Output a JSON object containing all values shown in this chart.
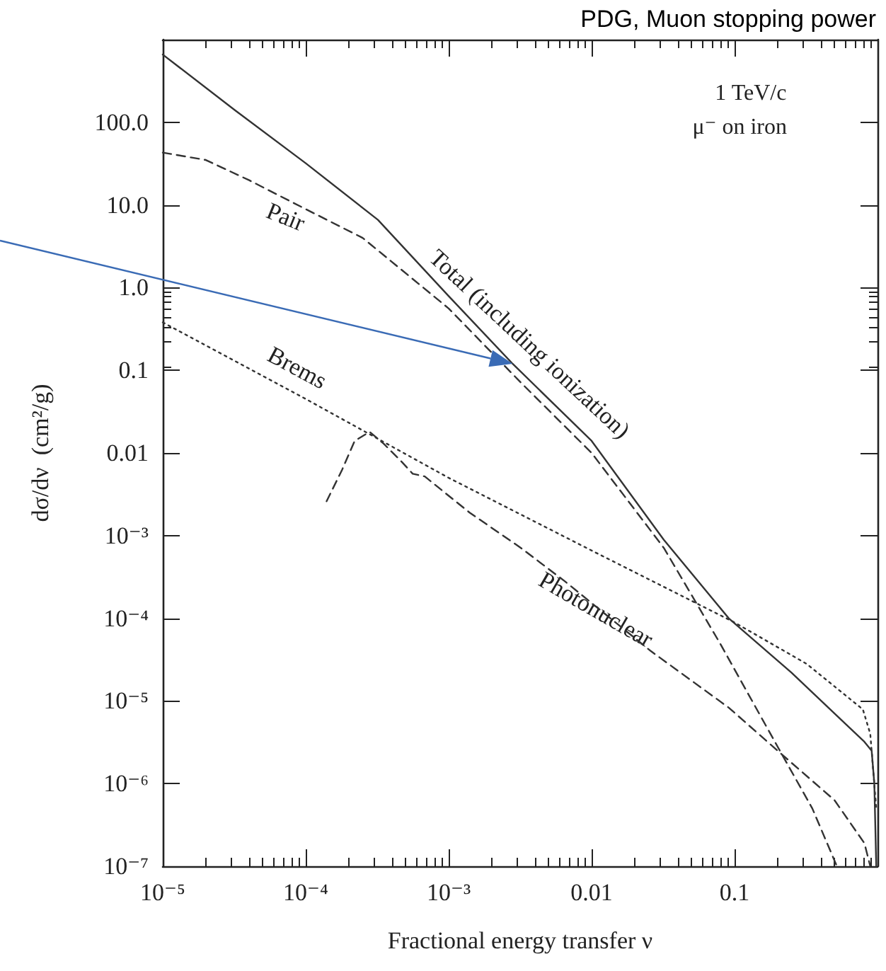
{
  "chart_data": {
    "type": "line",
    "title": "PDG, Muon stopping power",
    "xlabel": "Fractional energy transfer ν",
    "ylabel": "dσ/dν  (cm²/g)",
    "annotations": [
      "1 TeV/c",
      "μ⁻ on iron"
    ],
    "xlim": [
      1e-05,
      1
    ],
    "ylim": [
      1e-07,
      1000
    ],
    "log": "xy",
    "grid": false,
    "legend": false,
    "marker": "none",
    "xticks": [
      {
        "value": 1e-05,
        "label": "10⁻⁵"
      },
      {
        "value": 0.0001,
        "label": "10⁻⁴"
      },
      {
        "value": 0.001,
        "label": "10⁻³"
      },
      0.01,
      0.1
    ],
    "yticks": [
      {
        "value": 1e-07,
        "label": "10⁻⁷"
      },
      {
        "value": 1e-06,
        "label": "10⁻⁶"
      },
      {
        "value": 1e-05,
        "label": "10⁻⁵"
      },
      {
        "value": 0.0001,
        "label": "10⁻⁴"
      },
      {
        "value": 0.001,
        "label": "10⁻³"
      },
      0.01,
      0.1,
      {
        "value": 1,
        "label": "1.0"
      },
      {
        "value": 10,
        "label": "10.0"
      },
      {
        "value": 100,
        "label": "100.0"
      }
    ],
    "series": [
      {
        "name": "Total (including ionization)",
        "color": "#333333",
        "line_style": "solid",
        "x": [
          1e-05,
          3.2e-05,
          0.0001,
          0.00032,
          0.001,
          0.0028,
          0.01,
          0.032,
          0.091,
          0.25,
          0.81,
          0.91,
          0.95,
          0.98
        ],
        "values": [
          660,
          140,
          32,
          6.6,
          0.79,
          0.12,
          0.014,
          0.00089,
          0.0001,
          2.2e-05,
          3.2e-06,
          2.5e-06,
          1e-06,
          1e-07
        ]
      },
      {
        "name": "Pair",
        "color": "#333333",
        "line_style": "dashed",
        "x": [
          1e-05,
          2e-05,
          4e-05,
          0.0001,
          0.00025,
          0.001,
          0.0032,
          0.01,
          0.032,
          0.079,
          0.2,
          0.35,
          0.52
        ],
        "values": [
          43,
          35,
          20,
          8.9,
          4,
          0.56,
          0.071,
          0.01,
          0.00071,
          5e-05,
          2.8e-06,
          5e-07,
          1e-07
        ]
      },
      {
        "name": "Brems",
        "color": "#333333",
        "line_style": "dotted",
        "x": [
          1e-05,
          0.0001,
          0.001,
          0.01,
          0.1,
          0.32,
          0.79,
          0.89,
          0.98
        ],
        "values": [
          0.38,
          0.045,
          0.005,
          0.00066,
          8.9e-05,
          2.8e-05,
          7.9e-06,
          4e-06,
          5e-07
        ]
      },
      {
        "name": "Photonuclear",
        "color": "#333333",
        "line_style": "dashed",
        "x": [
          0.00014,
          0.00018,
          0.00022,
          0.00028,
          0.00035,
          0.00047,
          0.00056,
          0.00068,
          0.0014,
          0.0032,
          0.0065,
          0.026,
          0.091,
          0.2,
          0.5,
          0.81,
          0.89
        ],
        "values": [
          0.0026,
          0.0063,
          0.014,
          0.018,
          0.013,
          0.0078,
          0.0056,
          0.0052,
          0.0019,
          0.00071,
          0.00028,
          4e-05,
          8.3e-06,
          2.5e-06,
          6.3e-07,
          1.9e-07,
          1e-07
        ]
      }
    ]
  }
}
